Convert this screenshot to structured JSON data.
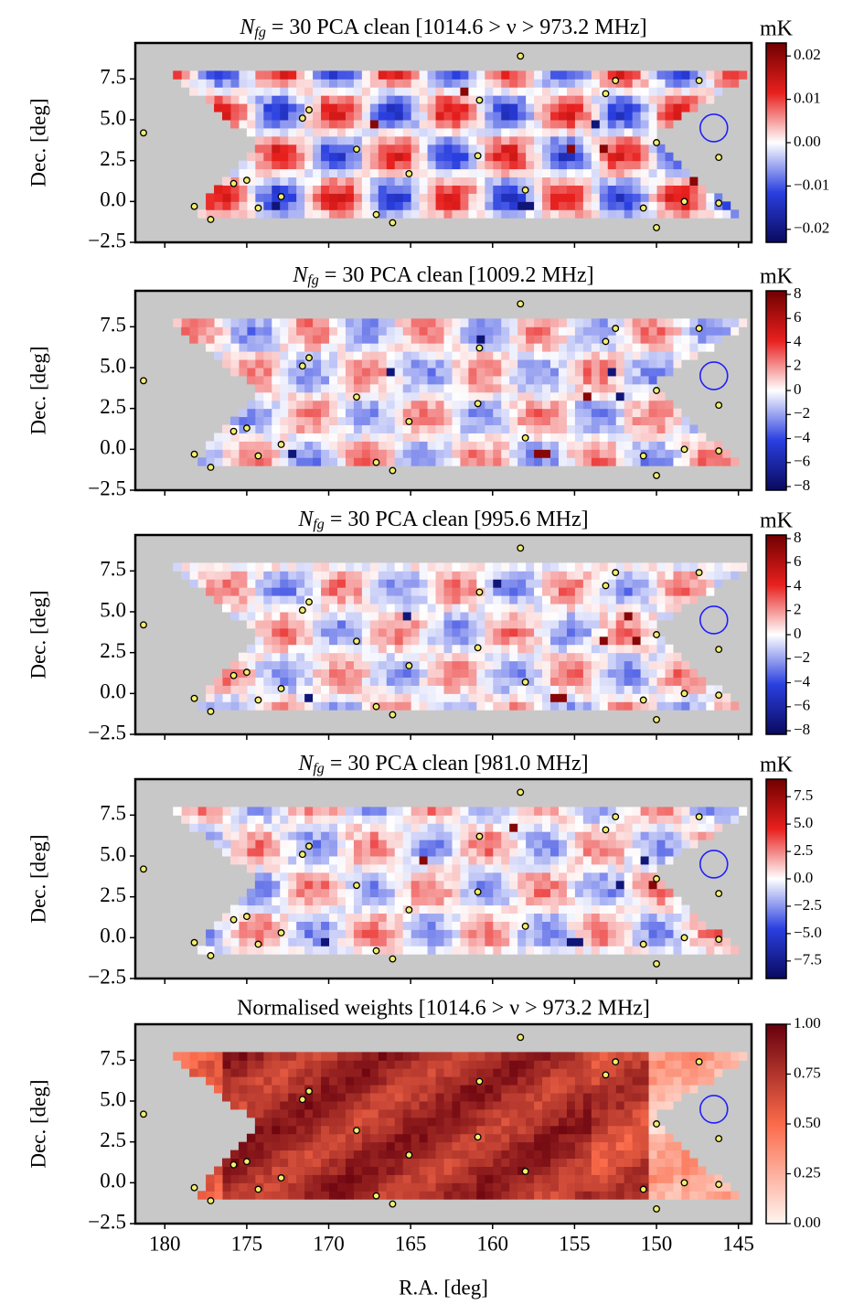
{
  "chart_data": [
    {
      "type": "heatmap",
      "title": {
        "symbol": "N",
        "subscript": "fg",
        "text": " = 30 PCA clean [1014.6 > ν > 973.2 MHz]"
      },
      "y_label": "Dec. [deg]",
      "colorbar_label": "mK",
      "colormap": "RdBu_r",
      "xlim": [
        181.8,
        144.2
      ],
      "xticks": [
        180,
        175,
        170,
        165,
        160,
        155,
        150,
        145
      ],
      "show_xtick_labels": false,
      "ylim": [
        -2.5,
        9.7
      ],
      "yticks": [
        7.5,
        {
          "value": 5,
          "label": "5.0"
        },
        2.5,
        {
          "value": 0,
          "label": "0.0"
        },
        {
          "value": -2.5,
          "label": "−2.5"
        }
      ],
      "clim": [
        -0.023,
        0.023
      ],
      "cticks": [
        0.02,
        0.01,
        {
          "value": 0,
          "label": "0.00"
        },
        {
          "value": -0.01,
          "label": "−0.01"
        },
        {
          "value": -0.02,
          "label": "−0.02"
        }
      ],
      "points": {
        "x": [
          181.3,
          158.3,
          153.1,
          152.5,
          147.4,
          171.2,
          171.6,
          160.8,
          168.3,
          165.1,
          160.9,
          158.0,
          150.0,
          146.2,
          175.8,
          175.0,
          172.9,
          174.3,
          178.2,
          177.2,
          167.1,
          166.1,
          150.8,
          148.3,
          150.0,
          146.2
        ],
        "y": [
          4.2,
          8.9,
          6.6,
          7.4,
          7.4,
          5.6,
          5.1,
          6.2,
          3.2,
          1.7,
          2.8,
          0.7,
          3.6,
          2.7,
          1.1,
          1.3,
          0.3,
          -0.4,
          -0.3,
          -1.1,
          -0.8,
          -1.3,
          -0.4,
          0.0,
          -1.6,
          -0.1
        ]
      }
    },
    {
      "type": "heatmap",
      "title": {
        "symbol": "N",
        "subscript": "fg",
        "text": " = 30 PCA clean [1009.2 MHz]"
      },
      "y_label": "Dec. [deg]",
      "colorbar_label": "mK",
      "colormap": "RdBu_r",
      "xlim": [
        181.8,
        144.2
      ],
      "xticks": [
        180,
        175,
        170,
        165,
        160,
        155,
        150,
        145
      ],
      "show_xtick_labels": false,
      "ylim": [
        -2.5,
        9.7
      ],
      "yticks": [
        7.5,
        {
          "value": 5,
          "label": "5.0"
        },
        2.5,
        {
          "value": 0,
          "label": "0.0"
        },
        {
          "value": -2.5,
          "label": "−2.5"
        }
      ],
      "clim": [
        -8.3,
        8.3
      ],
      "cticks": [
        8,
        6,
        4,
        2,
        0,
        {
          "value": -2,
          "label": "−2"
        },
        {
          "value": -4,
          "label": "−4"
        },
        {
          "value": -6,
          "label": "−6"
        },
        {
          "value": -8,
          "label": "−8"
        }
      ],
      "points": {
        "x": [
          181.3,
          158.3,
          153.1,
          152.5,
          147.4,
          171.2,
          171.6,
          160.8,
          168.3,
          165.1,
          160.9,
          158.0,
          150.0,
          146.2,
          175.8,
          175.0,
          172.9,
          174.3,
          178.2,
          177.2,
          167.1,
          166.1,
          150.8,
          148.3,
          150.0,
          146.2
        ],
        "y": [
          4.2,
          8.9,
          6.6,
          7.4,
          7.4,
          5.6,
          5.1,
          6.2,
          3.2,
          1.7,
          2.8,
          0.7,
          3.6,
          2.7,
          1.1,
          1.3,
          0.3,
          -0.4,
          -0.3,
          -1.1,
          -0.8,
          -1.3,
          -0.4,
          0.0,
          -1.6,
          -0.1
        ]
      }
    },
    {
      "type": "heatmap",
      "title": {
        "symbol": "N",
        "subscript": "fg",
        "text": " = 30 PCA clean [995.6 MHz]"
      },
      "y_label": "Dec. [deg]",
      "colorbar_label": "mK",
      "colormap": "RdBu_r",
      "xlim": [
        181.8,
        144.2
      ],
      "xticks": [
        180,
        175,
        170,
        165,
        160,
        155,
        150,
        145
      ],
      "show_xtick_labels": false,
      "ylim": [
        -2.5,
        9.7
      ],
      "yticks": [
        7.5,
        {
          "value": 5,
          "label": "5.0"
        },
        2.5,
        {
          "value": 0,
          "label": "0.0"
        },
        {
          "value": -2.5,
          "label": "−2.5"
        }
      ],
      "clim": [
        -8.3,
        8.3
      ],
      "cticks": [
        8,
        6,
        4,
        2,
        0,
        {
          "value": -2,
          "label": "−2"
        },
        {
          "value": -4,
          "label": "−4"
        },
        {
          "value": -6,
          "label": "−6"
        },
        {
          "value": -8,
          "label": "−8"
        }
      ],
      "points": {
        "x": [
          181.3,
          158.3,
          153.1,
          152.5,
          147.4,
          171.2,
          171.6,
          160.8,
          168.3,
          165.1,
          160.9,
          158.0,
          150.0,
          146.2,
          175.8,
          175.0,
          172.9,
          174.3,
          178.2,
          177.2,
          167.1,
          166.1,
          150.8,
          148.3,
          150.0,
          146.2
        ],
        "y": [
          4.2,
          8.9,
          6.6,
          7.4,
          7.4,
          5.6,
          5.1,
          6.2,
          3.2,
          1.7,
          2.8,
          0.7,
          3.6,
          2.7,
          1.1,
          1.3,
          0.3,
          -0.4,
          -0.3,
          -1.1,
          -0.8,
          -1.3,
          -0.4,
          0.0,
          -1.6,
          -0.1
        ]
      }
    },
    {
      "type": "heatmap",
      "title": {
        "symbol": "N",
        "subscript": "fg",
        "text": " = 30 PCA clean [981.0 MHz]"
      },
      "y_label": "Dec. [deg]",
      "colorbar_label": "mK",
      "colormap": "RdBu_r",
      "xlim": [
        181.8,
        144.2
      ],
      "xticks": [
        180,
        175,
        170,
        165,
        160,
        155,
        150,
        145
      ],
      "show_xtick_labels": false,
      "ylim": [
        -2.5,
        9.7
      ],
      "yticks": [
        7.5,
        {
          "value": 5,
          "label": "5.0"
        },
        2.5,
        {
          "value": 0,
          "label": "0.0"
        },
        {
          "value": -2.5,
          "label": "−2.5"
        }
      ],
      "clim": [
        -9.1,
        9.1
      ],
      "cticks": [
        7.5,
        {
          "value": 5,
          "label": "5.0"
        },
        2.5,
        {
          "value": 0,
          "label": "0.0"
        },
        {
          "value": -2.5,
          "label": "−2.5"
        },
        {
          "value": -5,
          "label": "−5.0"
        },
        {
          "value": -7.5,
          "label": "−7.5"
        }
      ],
      "points": {
        "x": [
          181.3,
          158.3,
          153.1,
          152.5,
          147.4,
          171.2,
          171.6,
          160.8,
          168.3,
          165.1,
          160.9,
          158.0,
          150.0,
          146.2,
          175.8,
          175.0,
          172.9,
          174.3,
          178.2,
          177.2,
          167.1,
          166.1,
          150.8,
          148.3,
          150.0,
          146.2
        ],
        "y": [
          4.2,
          8.9,
          6.6,
          7.4,
          7.4,
          5.6,
          5.1,
          6.2,
          3.2,
          1.7,
          2.8,
          0.7,
          3.6,
          2.7,
          1.1,
          1.3,
          0.3,
          -0.4,
          -0.3,
          -1.1,
          -0.8,
          -1.3,
          -0.4,
          0.0,
          -1.6,
          -0.1
        ]
      }
    },
    {
      "type": "heatmap",
      "title": "Normalised weights [1014.6 > ν > 973.2 MHz]",
      "y_label": "Dec. [deg]",
      "x_label": "R.A. [deg]",
      "colormap": "Reds",
      "xlim": [
        181.8,
        144.2
      ],
      "xticks": [
        180,
        175,
        170,
        165,
        160,
        155,
        150,
        145
      ],
      "show_xtick_labels": true,
      "ylim": [
        -2.5,
        9.7
      ],
      "yticks": [
        7.5,
        {
          "value": 5,
          "label": "5.0"
        },
        2.5,
        {
          "value": 0,
          "label": "0.0"
        },
        {
          "value": -2.5,
          "label": "−2.5"
        }
      ],
      "clim": [
        0,
        1.0
      ],
      "cticks": [
        {
          "value": 1,
          "label": "1.00"
        },
        0.75,
        {
          "value": 0.5,
          "label": "0.50"
        },
        0.25,
        {
          "value": 0,
          "label": "0.00"
        }
      ],
      "points": {
        "x": [
          181.3,
          158.3,
          153.1,
          152.5,
          147.4,
          171.2,
          171.6,
          160.8,
          168.3,
          165.1,
          160.9,
          158.0,
          150.0,
          146.2,
          175.8,
          175.0,
          172.9,
          174.3,
          178.2,
          177.2,
          167.1,
          166.1,
          150.8,
          148.3,
          150.0,
          146.2
        ],
        "y": [
          4.2,
          8.9,
          6.6,
          7.4,
          7.4,
          5.6,
          5.1,
          6.2,
          3.2,
          1.7,
          2.8,
          0.7,
          3.6,
          2.7,
          1.1,
          1.3,
          0.3,
          -0.4,
          -0.3,
          -1.1,
          -0.8,
          -1.3,
          -0.4,
          0.0,
          -1.6,
          -0.1
        ]
      }
    }
  ]
}
